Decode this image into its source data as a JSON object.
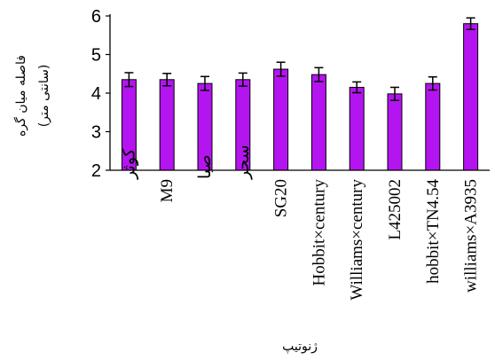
{
  "chart_data": {
    "type": "bar",
    "title": "",
    "xlabel": "ژنوتیپ",
    "ylabel_lines": [
      "فاصله میان گره",
      "(سانتی متر)"
    ],
    "ylim": [
      2,
      6
    ],
    "yticks": [
      2,
      3,
      4,
      5,
      6
    ],
    "categories": [
      "کوثر",
      "M9",
      "صبا",
      "سحر",
      "SG20",
      "Hobbit×century",
      "Williams×century",
      "L425002",
      "hobbit×TN4.54",
      "williams×A3935"
    ],
    "values": [
      4.35,
      4.35,
      4.25,
      4.35,
      4.62,
      4.48,
      4.15,
      3.98,
      4.25,
      5.8
    ],
    "errors": [
      0.18,
      0.16,
      0.18,
      0.17,
      0.18,
      0.18,
      0.14,
      0.17,
      0.17,
      0.15
    ],
    "bar_color": "#b414f0",
    "grid": false,
    "legend": "none"
  }
}
